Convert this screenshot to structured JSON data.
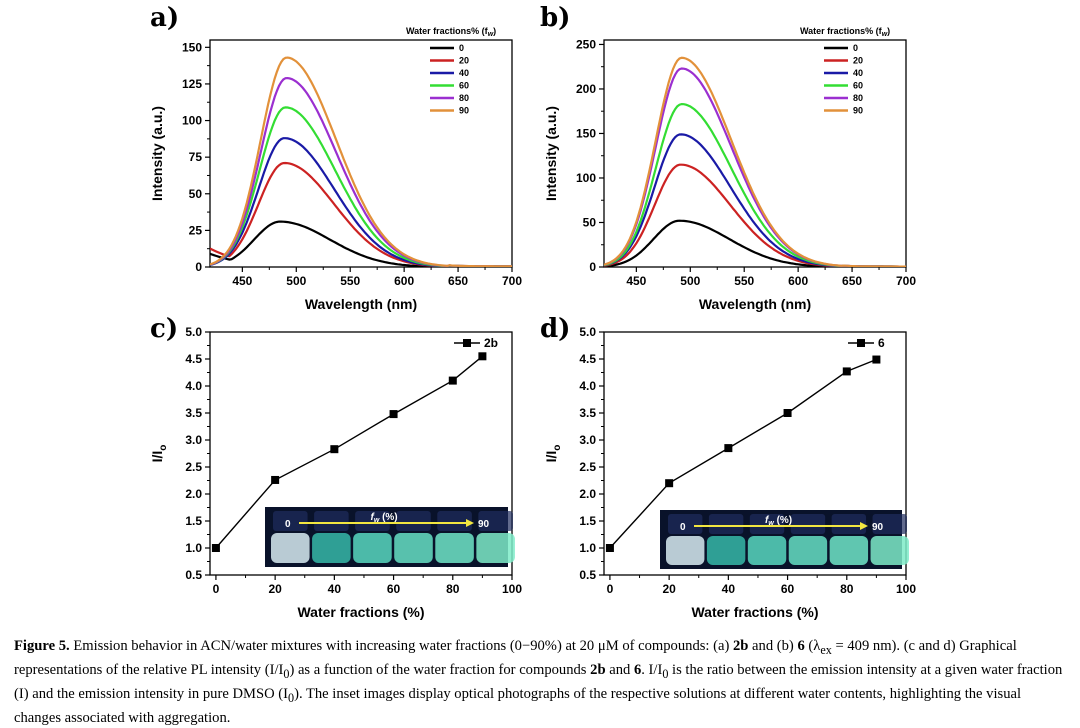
{
  "chart_data": [
    {
      "panel": "a)",
      "type": "line",
      "xlabel": "Wavelength (nm)",
      "ylabel": "Intensity (a.u.)",
      "xlim": [
        420,
        700
      ],
      "ylim": [
        0,
        155
      ],
      "xticks": [
        450,
        500,
        550,
        600,
        650,
        700
      ],
      "yticks": [
        0,
        25,
        50,
        75,
        100,
        125,
        150
      ],
      "legend_title": "Water fractions% (f",
      "legend_title_sub": "w",
      "legend_title_end": ")",
      "series": [
        {
          "name": "0",
          "color": "#000000",
          "peak": 31,
          "peak_x": 485,
          "start": 10
        },
        {
          "name": "20",
          "color": "#cc2222",
          "peak": 71,
          "peak_x": 489,
          "start": 14
        },
        {
          "name": "40",
          "color": "#1a1aa6",
          "peak": 88,
          "peak_x": 489,
          "start": 0
        },
        {
          "name": "60",
          "color": "#33dd33",
          "peak": 109,
          "peak_x": 490,
          "start": 0
        },
        {
          "name": "80",
          "color": "#9b2fd0",
          "peak": 129,
          "peak_x": 491,
          "start": 0
        },
        {
          "name": "90",
          "color": "#e2913a",
          "peak": 143,
          "peak_x": 491,
          "start": 0
        }
      ]
    },
    {
      "panel": "b)",
      "type": "line",
      "xlabel": "Wavelength (nm)",
      "ylabel": "Intensity (a.u.)",
      "xlim": [
        420,
        700
      ],
      "ylim": [
        0,
        255
      ],
      "xticks": [
        450,
        500,
        550,
        600,
        650,
        700
      ],
      "yticks": [
        0,
        50,
        100,
        150,
        200,
        250
      ],
      "legend_title": "Water fractions% (f",
      "legend_title_sub": "w",
      "legend_title_end": ")",
      "series": [
        {
          "name": "0",
          "color": "#000000",
          "peak": 52,
          "peak_x": 490,
          "start": 0
        },
        {
          "name": "20",
          "color": "#cc2222",
          "peak": 115,
          "peak_x": 491,
          "start": 0
        },
        {
          "name": "40",
          "color": "#1a1aa6",
          "peak": 149,
          "peak_x": 491,
          "start": 0
        },
        {
          "name": "60",
          "color": "#33dd33",
          "peak": 183,
          "peak_x": 492,
          "start": 0
        },
        {
          "name": "80",
          "color": "#9b2fd0",
          "peak": 223,
          "peak_x": 492,
          "start": 0
        },
        {
          "name": "90",
          "color": "#e2913a",
          "peak": 235,
          "peak_x": 492,
          "start": 0
        }
      ]
    },
    {
      "panel": "c)",
      "type": "line",
      "xlabel": "Water fractions (%)",
      "ylabel": "I/I",
      "ylabel_sub": "o",
      "xlim": [
        -2,
        100
      ],
      "ylim": [
        0.5,
        5.0
      ],
      "xticks": [
        0,
        20,
        40,
        60,
        80,
        100
      ],
      "yticks": [
        0.5,
        1.0,
        1.5,
        2.0,
        2.5,
        3.0,
        3.5,
        4.0,
        4.5,
        5.0
      ],
      "series": [
        {
          "name": "2b",
          "color": "#000000",
          "x": [
            0,
            20,
            40,
            60,
            80,
            90
          ],
          "y": [
            1.0,
            2.26,
            2.83,
            3.48,
            4.1,
            4.55
          ]
        }
      ],
      "inset": {
        "start_label": "0",
        "mid_label": "f",
        "mid_sub": "w",
        "mid_end": " (%)",
        "end_label": "90",
        "tone": "blue"
      }
    },
    {
      "panel": "d)",
      "type": "line",
      "xlabel": "Water fractions (%)",
      "ylabel": "I/I",
      "ylabel_sub": "o",
      "xlim": [
        -2,
        100
      ],
      "ylim": [
        0.5,
        5.0
      ],
      "xticks": [
        0,
        20,
        40,
        60,
        80,
        100
      ],
      "yticks": [
        0.5,
        1.0,
        1.5,
        2.0,
        2.5,
        3.0,
        3.5,
        4.0,
        4.5,
        5.0
      ],
      "series": [
        {
          "name": "6",
          "color": "#000000",
          "x": [
            0,
            20,
            40,
            60,
            80,
            90
          ],
          "y": [
            1.0,
            2.2,
            2.85,
            3.5,
            4.27,
            4.49
          ]
        }
      ],
      "inset": {
        "start_label": "0",
        "mid_label": "f",
        "mid_sub": "w",
        "mid_end": " (%)",
        "end_label": "90",
        "tone": "green"
      }
    }
  ],
  "caption": {
    "label": "Figure 5.",
    "t1": " Emission behavior in ACN/water mixtures with increasing water fractions (0−90%) at 20 μM of compounds: (a) ",
    "c1": "2b",
    "t2": " and (b) ",
    "c2": "6",
    "t3": " (λ",
    "t3_sub": "ex",
    "t4": " = 409 nm). (c and d) Graphical representations of the relative PL intensity (I/I",
    "t4_sub": "0",
    "t5": ") as a function of the water fraction for compounds ",
    "c3": "2b",
    "t6": " and ",
    "c4": "6",
    "t7": ". I/I",
    "t7_sub": "0",
    "t8": " is the ratio between the emission intensity at a given water fraction (I) and the emission intensity in pure DMSO (I",
    "t8_sub": "0",
    "t9": "). The inset images display optical photographs of the respective solutions at different water contents, highlighting the visual changes associated with aggregation."
  }
}
